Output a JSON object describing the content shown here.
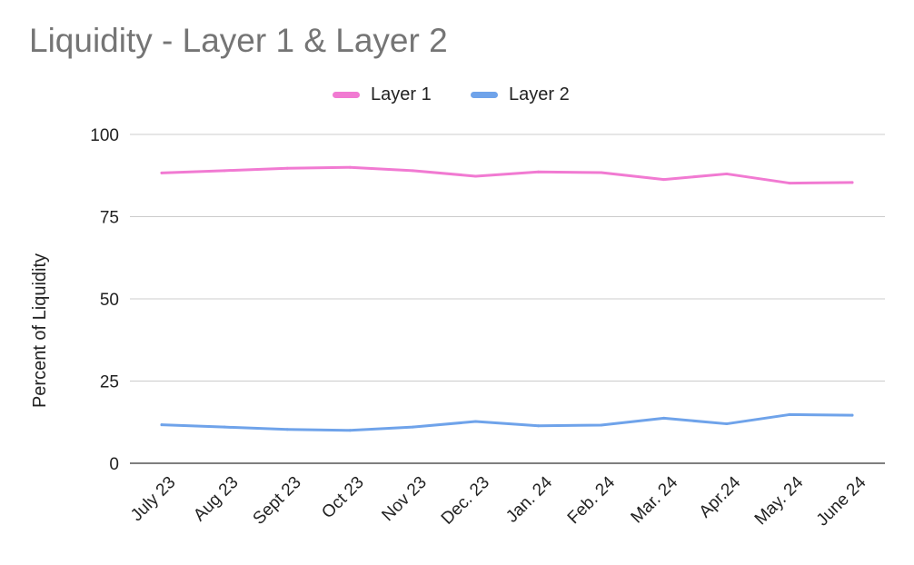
{
  "chart_data": {
    "type": "line",
    "title": "Liquidity - Layer 1 & Layer 2",
    "xlabel": "",
    "ylabel": "Percent of Liquidity",
    "ylim": [
      0,
      100
    ],
    "yticks": [
      "0",
      "25",
      "50",
      "75",
      "100"
    ],
    "grid": true,
    "legend_position": "top-center",
    "categories": [
      "July 23",
      "Aug 23",
      "Sept 23",
      "Oct 23",
      "Nov 23",
      "Dec. 23",
      "Jan. 24",
      "Feb. 24",
      "Mar. 24",
      "Apr.24",
      "May. 24",
      "June 24"
    ],
    "series": [
      {
        "name": "Layer 1",
        "color": "#f17ad2",
        "values": [
          88.3,
          89.0,
          89.7,
          90.0,
          89.0,
          87.3,
          88.6,
          88.4,
          86.3,
          88.0,
          85.2,
          85.4
        ]
      },
      {
        "name": "Layer 2",
        "color": "#6fa3ea",
        "values": [
          11.7,
          11.0,
          10.3,
          10.0,
          11.0,
          12.7,
          11.4,
          11.6,
          13.7,
          12.0,
          14.8,
          14.6
        ]
      }
    ]
  }
}
